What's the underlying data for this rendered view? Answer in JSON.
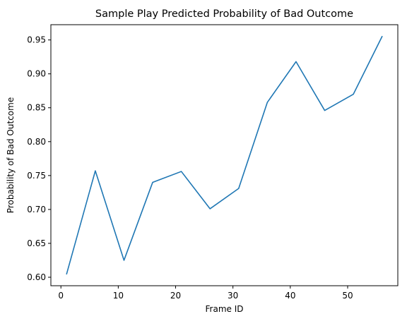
{
  "chart_data": {
    "type": "line",
    "title": "Sample Play Predicted Probability of Bad Outcome",
    "xlabel": "Frame ID",
    "ylabel": "Probability of Bad Outcome",
    "xlim": [
      -1.75,
      58.75
    ],
    "ylim": [
      0.5875,
      0.9725
    ],
    "xticks": [
      0,
      10,
      20,
      30,
      40,
      50
    ],
    "xtick_labels": [
      "0",
      "10",
      "20",
      "30",
      "40",
      "50"
    ],
    "yticks": [
      0.6,
      0.65,
      0.7,
      0.75,
      0.8,
      0.85,
      0.9,
      0.95
    ],
    "ytick_labels": [
      "0.60",
      "0.65",
      "0.70",
      "0.75",
      "0.80",
      "0.85",
      "0.90",
      "0.95"
    ],
    "grid": false,
    "series": [
      {
        "color": "#1f77b4",
        "x": [
          1,
          6,
          11,
          16,
          21,
          26,
          31,
          36,
          41,
          46,
          51,
          56
        ],
        "y": [
          0.605,
          0.757,
          0.625,
          0.74,
          0.756,
          0.701,
          0.731,
          0.858,
          0.918,
          0.846,
          0.87,
          0.955
        ]
      }
    ]
  }
}
